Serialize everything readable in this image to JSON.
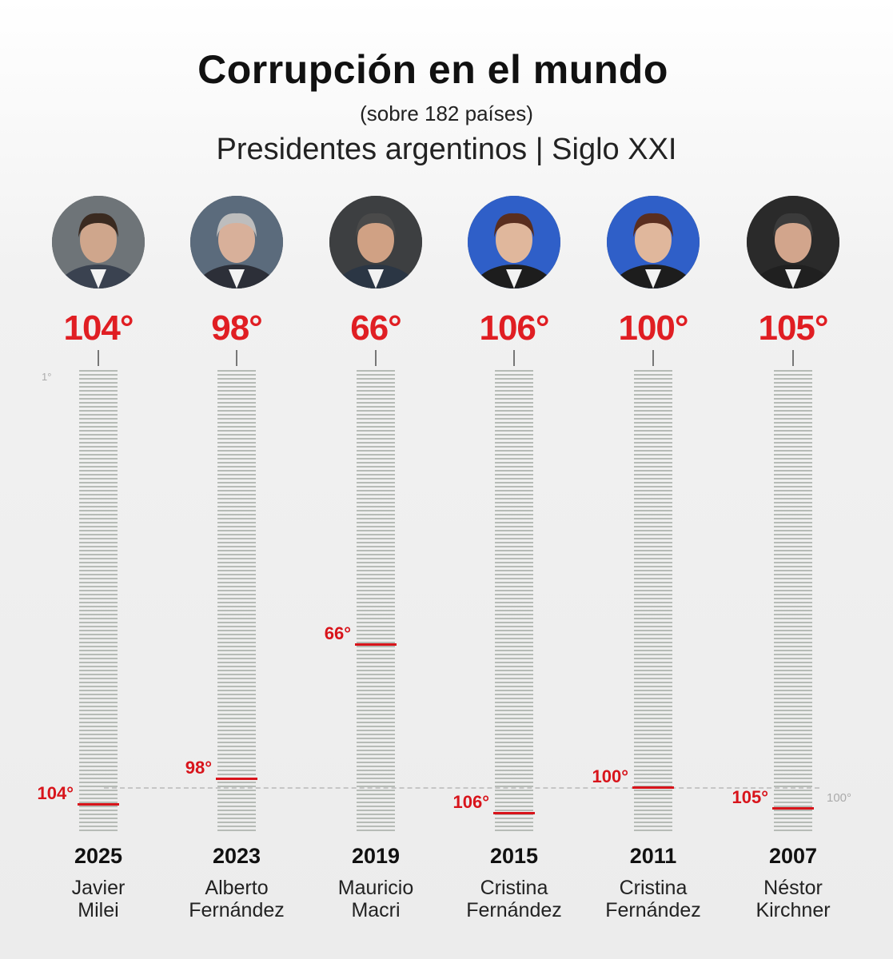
{
  "chart_data": {
    "type": "bar",
    "title": "Corrupción en el mundo",
    "subtitle": "(sobre 182 países)",
    "subtitle2": "Presidentes argentinos | Siglo XXI",
    "ylim": [
      1,
      182
    ],
    "axis_top_label": "1°",
    "reference": {
      "value": 100,
      "label": "100°"
    },
    "colors": {
      "accent": "#e01e23",
      "scale": "#b6bbb6"
    },
    "items": [
      {
        "rank": 104,
        "rank_label": "104°",
        "year": "2025",
        "first_name": "Javier",
        "last_name": "Milei"
      },
      {
        "rank": 98,
        "rank_label": "98°",
        "year": "2023",
        "first_name": "Alberto",
        "last_name": "Fernández"
      },
      {
        "rank": 66,
        "rank_label": "66°",
        "year": "2019",
        "first_name": "Mauricio",
        "last_name": "Macri"
      },
      {
        "rank": 106,
        "rank_label": "106°",
        "year": "2015",
        "first_name": "Cristina",
        "last_name": "Fernández"
      },
      {
        "rank": 100,
        "rank_label": "100°",
        "year": "2011",
        "first_name": "Cristina",
        "last_name": "Fernández"
      },
      {
        "rank": 105,
        "rank_label": "105°",
        "year": "2007",
        "first_name": "Néstor",
        "last_name": "Kirchner"
      }
    ]
  }
}
